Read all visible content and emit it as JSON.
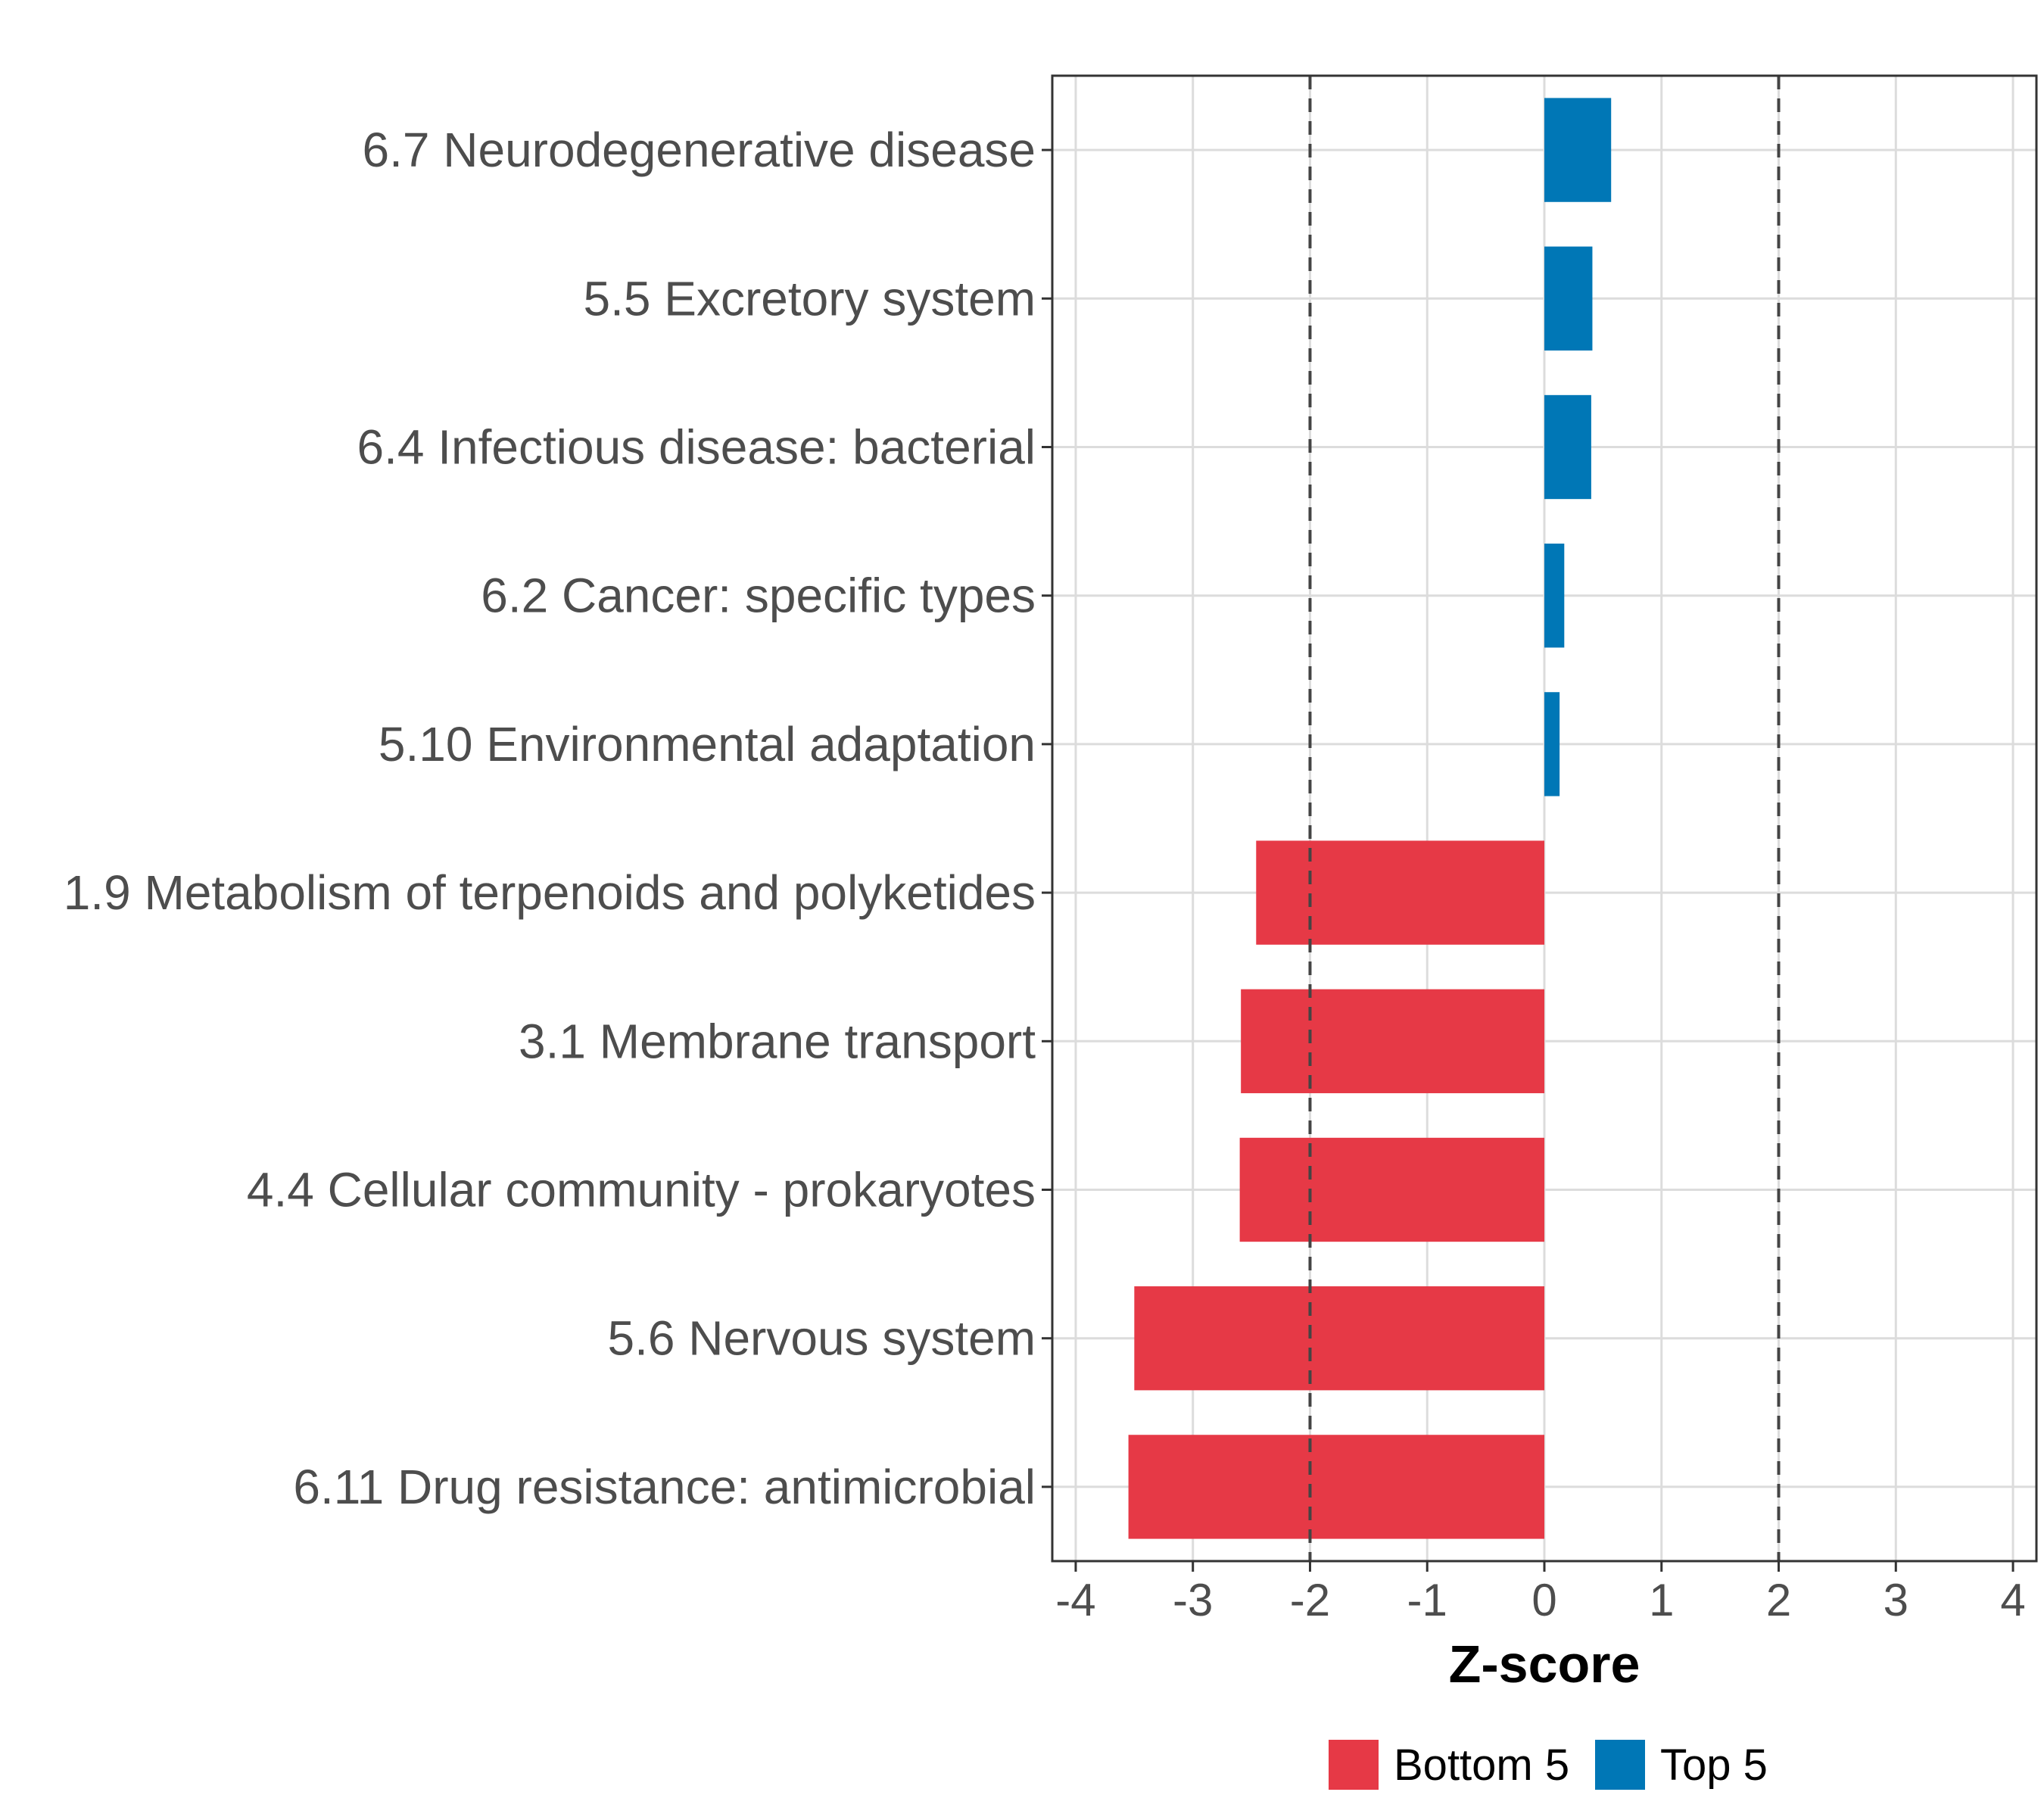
{
  "chart_data": {
    "type": "bar",
    "orientation": "horizontal",
    "title": "",
    "xlabel": "Z-score",
    "ylabel": "",
    "xlim": [
      -4.2,
      4.2
    ],
    "xticks": [
      -4,
      -3,
      -2,
      -1,
      0,
      1,
      2,
      3,
      4
    ],
    "xtick_labels": [
      "-4",
      "-3",
      "-2",
      "-1",
      "0",
      "1",
      "2",
      "3",
      "4"
    ],
    "grid": true,
    "reference_lines": [
      -2,
      2
    ],
    "categories": [
      "6.7 Neurodegenerative disease",
      "5.5 Excretory system",
      "6.4 Infectious disease: bacterial",
      "6.2 Cancer: specific types",
      "5.10 Environmental adaptation",
      "1.9 Metabolism of terpenoids and polyketides",
      "3.1 Membrane transport",
      "4.4 Cellular community - prokaryotes",
      "5.6 Nervous system",
      "6.11 Drug resistance: antimicrobial"
    ],
    "values": [
      0.57,
      0.41,
      0.4,
      0.17,
      0.13,
      -2.46,
      -2.59,
      -2.6,
      -3.5,
      -3.55
    ],
    "groups": [
      "Top 5",
      "Top 5",
      "Top 5",
      "Top 5",
      "Top 5",
      "Bottom 5",
      "Bottom 5",
      "Bottom 5",
      "Bottom 5",
      "Bottom 5"
    ],
    "legend": {
      "position": "bottom",
      "entries": [
        {
          "name": "Bottom 5",
          "color": "#E63946"
        },
        {
          "name": "Top 5",
          "color": "#0077B6"
        }
      ]
    }
  }
}
